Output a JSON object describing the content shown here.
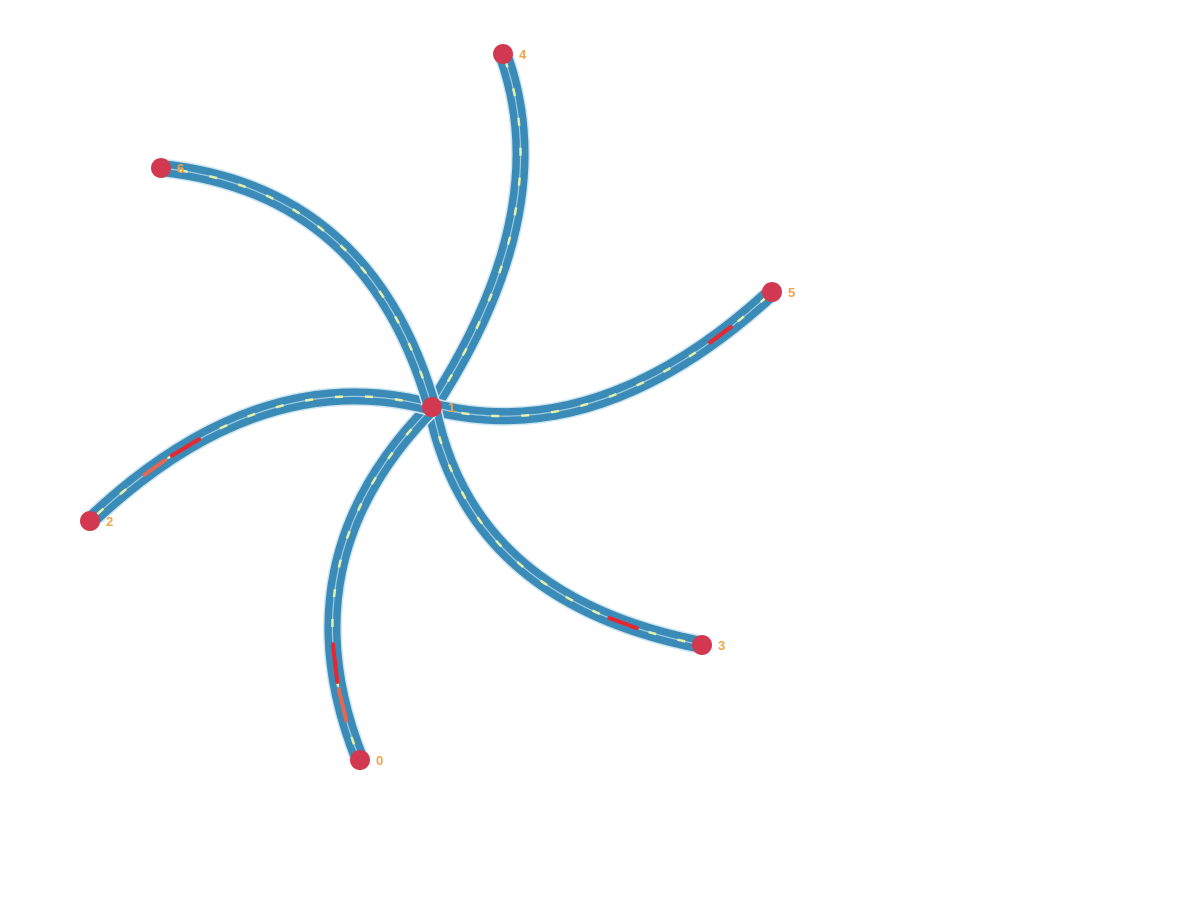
{
  "colors": {
    "background": "#ffffff",
    "road": "#3a8bb8",
    "road_edge": "#cfe6f0",
    "lane_marking": "#e6f0a6",
    "congestion_medium": "#e8664f",
    "congestion_heavy": "#e8262e",
    "node": "#d2384f",
    "label": "#f2a44a"
  },
  "nodes": [
    {
      "id": "0",
      "label": "0"
    },
    {
      "id": "1",
      "label": "1"
    },
    {
      "id": "2",
      "label": "2"
    },
    {
      "id": "3",
      "label": "3"
    },
    {
      "id": "4",
      "label": "4"
    },
    {
      "id": "5",
      "label": "5"
    },
    {
      "id": "6",
      "label": "6"
    }
  ],
  "edges": [
    {
      "from": "1",
      "to": "4"
    },
    {
      "from": "1",
      "to": "5"
    },
    {
      "from": "1",
      "to": "3"
    },
    {
      "from": "1",
      "to": "0"
    },
    {
      "from": "1",
      "to": "2"
    },
    {
      "from": "1",
      "to": "6"
    }
  ]
}
